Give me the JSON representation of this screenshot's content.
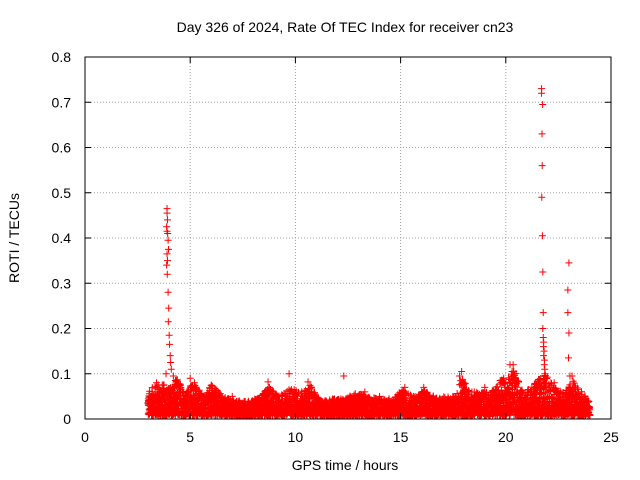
{
  "colors": {
    "series": "#ff0000",
    "grid": "#a0a0a0",
    "axis": "#000000"
  },
  "chart_data": {
    "type": "scatter",
    "title": "Day 326 of 2024, Rate Of TEC Index for receiver cn23",
    "xlabel": "GPS time / hours",
    "ylabel": "ROTI / TECUs",
    "xlim": [
      0,
      25
    ],
    "ylim": [
      0,
      0.8
    ],
    "xticks": [
      0,
      5,
      10,
      15,
      20,
      25
    ],
    "yticks": [
      0,
      0.1,
      0.2,
      0.3,
      0.4,
      0.5,
      0.6,
      0.7,
      0.8
    ],
    "xtick_labels": [
      "0",
      "5",
      "10",
      "15",
      "20",
      "25"
    ],
    "ytick_labels": [
      "0",
      "0.1",
      "0.2",
      "0.3",
      "0.4",
      "0.5",
      "0.6",
      "0.7",
      "0.8"
    ],
    "grid": true,
    "marker": "plus",
    "series": [
      {
        "color": "#ff0000",
        "points": [
          [
            3.9,
            0.465
          ],
          [
            3.9,
            0.455
          ],
          [
            3.92,
            0.44
          ],
          [
            3.88,
            0.425
          ],
          [
            3.9,
            0.415
          ],
          [
            3.93,
            0.41
          ],
          [
            3.95,
            0.395
          ],
          [
            3.97,
            0.375
          ],
          [
            3.9,
            0.365
          ],
          [
            3.92,
            0.35
          ],
          [
            3.88,
            0.34
          ],
          [
            3.91,
            0.32
          ],
          [
            3.95,
            0.28
          ],
          [
            3.98,
            0.245
          ],
          [
            3.96,
            0.215
          ],
          [
            4.0,
            0.185
          ],
          [
            4.02,
            0.165
          ],
          [
            4.05,
            0.14
          ],
          [
            4.07,
            0.125
          ],
          [
            4.1,
            0.11
          ],
          [
            3.85,
            0.1
          ],
          [
            4.2,
            0.095
          ],
          [
            21.7,
            0.73
          ],
          [
            21.7,
            0.72
          ],
          [
            21.75,
            0.695
          ],
          [
            21.72,
            0.63
          ],
          [
            21.73,
            0.56
          ],
          [
            21.71,
            0.49
          ],
          [
            21.74,
            0.405
          ],
          [
            21.76,
            0.325
          ],
          [
            21.78,
            0.235
          ],
          [
            21.76,
            0.2
          ],
          [
            21.78,
            0.18
          ],
          [
            21.8,
            0.17
          ],
          [
            21.79,
            0.16
          ],
          [
            21.82,
            0.15
          ],
          [
            21.8,
            0.14
          ],
          [
            21.84,
            0.13
          ],
          [
            21.83,
            0.12
          ],
          [
            21.85,
            0.11
          ],
          [
            21.87,
            0.1
          ],
          [
            23.0,
            0.345
          ],
          [
            22.95,
            0.285
          ],
          [
            22.95,
            0.235
          ],
          [
            23.0,
            0.19
          ],
          [
            22.98,
            0.135
          ],
          [
            23.05,
            0.095
          ],
          [
            23.15,
            0.095
          ],
          [
            8.7,
            0.082
          ],
          [
            9.7,
            0.1
          ],
          [
            10.6,
            0.082
          ],
          [
            12.3,
            0.095
          ],
          [
            17.9,
            0.105
          ],
          [
            17.8,
            0.095
          ],
          [
            20.2,
            0.12
          ],
          [
            20.35,
            0.12
          ],
          [
            20.3,
            0.105
          ],
          [
            19.9,
            0.09
          ],
          [
            16.1,
            0.07
          ],
          [
            15.2,
            0.07
          ],
          [
            5.0,
            0.09
          ],
          [
            6.0,
            0.075
          ],
          [
            3.4,
            0.08
          ],
          [
            4.3,
            0.085
          ],
          [
            5.2,
            0.08
          ],
          [
            7.0,
            0.05
          ],
          [
            11.0,
            0.045
          ],
          [
            13.3,
            0.06
          ],
          [
            14.0,
            0.05
          ],
          [
            18.5,
            0.06
          ],
          [
            19.0,
            0.07
          ],
          [
            22.3,
            0.08
          ]
        ]
      }
    ],
    "envelope": {
      "x_start": 3.0,
      "x_end": 24.0,
      "max_by_hour": [
        [
          3.0,
          0.06
        ],
        [
          3.3,
          0.075
        ],
        [
          3.6,
          0.08
        ],
        [
          4.0,
          0.07
        ],
        [
          4.4,
          0.09
        ],
        [
          4.8,
          0.06
        ],
        [
          5.2,
          0.085
        ],
        [
          5.6,
          0.05
        ],
        [
          6.0,
          0.075
        ],
        [
          6.6,
          0.05
        ],
        [
          7.2,
          0.04
        ],
        [
          7.8,
          0.04
        ],
        [
          8.4,
          0.05
        ],
        [
          8.7,
          0.075
        ],
        [
          9.2,
          0.05
        ],
        [
          9.8,
          0.07
        ],
        [
          10.3,
          0.06
        ],
        [
          10.7,
          0.075
        ],
        [
          11.2,
          0.04
        ],
        [
          11.8,
          0.045
        ],
        [
          12.4,
          0.045
        ],
        [
          12.9,
          0.06
        ],
        [
          13.5,
          0.05
        ],
        [
          14.0,
          0.045
        ],
        [
          14.6,
          0.045
        ],
        [
          15.1,
          0.065
        ],
        [
          15.6,
          0.05
        ],
        [
          16.1,
          0.065
        ],
        [
          16.6,
          0.05
        ],
        [
          17.1,
          0.05
        ],
        [
          17.6,
          0.05
        ],
        [
          17.9,
          0.1
        ],
        [
          18.3,
          0.06
        ],
        [
          18.8,
          0.06
        ],
        [
          19.3,
          0.06
        ],
        [
          19.7,
          0.085
        ],
        [
          20.1,
          0.09
        ],
        [
          20.4,
          0.11
        ],
        [
          20.8,
          0.06
        ],
        [
          21.2,
          0.07
        ],
        [
          21.6,
          0.09
        ],
        [
          21.9,
          0.1
        ],
        [
          22.3,
          0.07
        ],
        [
          22.8,
          0.06
        ],
        [
          23.2,
          0.085
        ],
        [
          23.6,
          0.06
        ],
        [
          24.0,
          0.04
        ]
      ],
      "min_value": 0.008
    }
  }
}
